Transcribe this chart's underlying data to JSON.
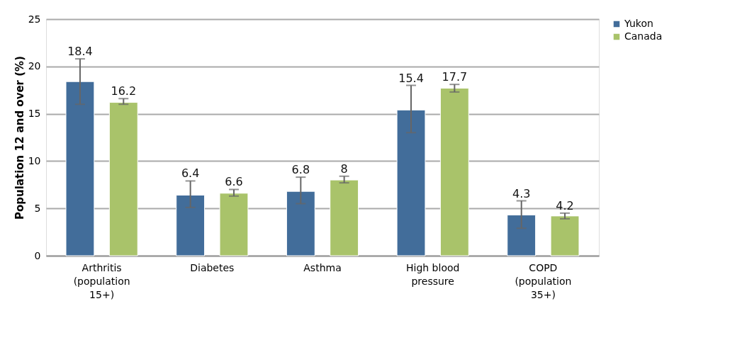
{
  "chart_data": {
    "type": "bar",
    "ylabel": "Population 12 and over (%)",
    "categories": [
      "Arthritis (population 15+)",
      "Diabetes",
      "Asthma",
      "High blood pressure",
      "COPD (population 35+)"
    ],
    "series": [
      {
        "name": "Yukon",
        "color": "#426d9a",
        "values": [
          18.4,
          6.4,
          6.8,
          15.4,
          4.3
        ],
        "errors": [
          [
            16.0,
            20.8
          ],
          [
            5.1,
            7.9
          ],
          [
            5.5,
            8.3
          ],
          [
            13.0,
            18.0
          ],
          [
            2.9,
            5.8
          ]
        ]
      },
      {
        "name": "Canada",
        "color": "#a9c36a",
        "values": [
          16.2,
          6.6,
          8,
          17.7,
          4.2
        ],
        "errors": [
          [
            16.0,
            16.6
          ],
          [
            6.3,
            7.0
          ],
          [
            7.7,
            8.4
          ],
          [
            17.3,
            18.1
          ],
          [
            3.9,
            4.5
          ]
        ]
      }
    ],
    "ylim": [
      0,
      25
    ],
    "yticks": [
      0,
      5,
      10,
      15,
      20,
      25
    ],
    "grid": "y",
    "legend": "right",
    "data_labels": true
  }
}
